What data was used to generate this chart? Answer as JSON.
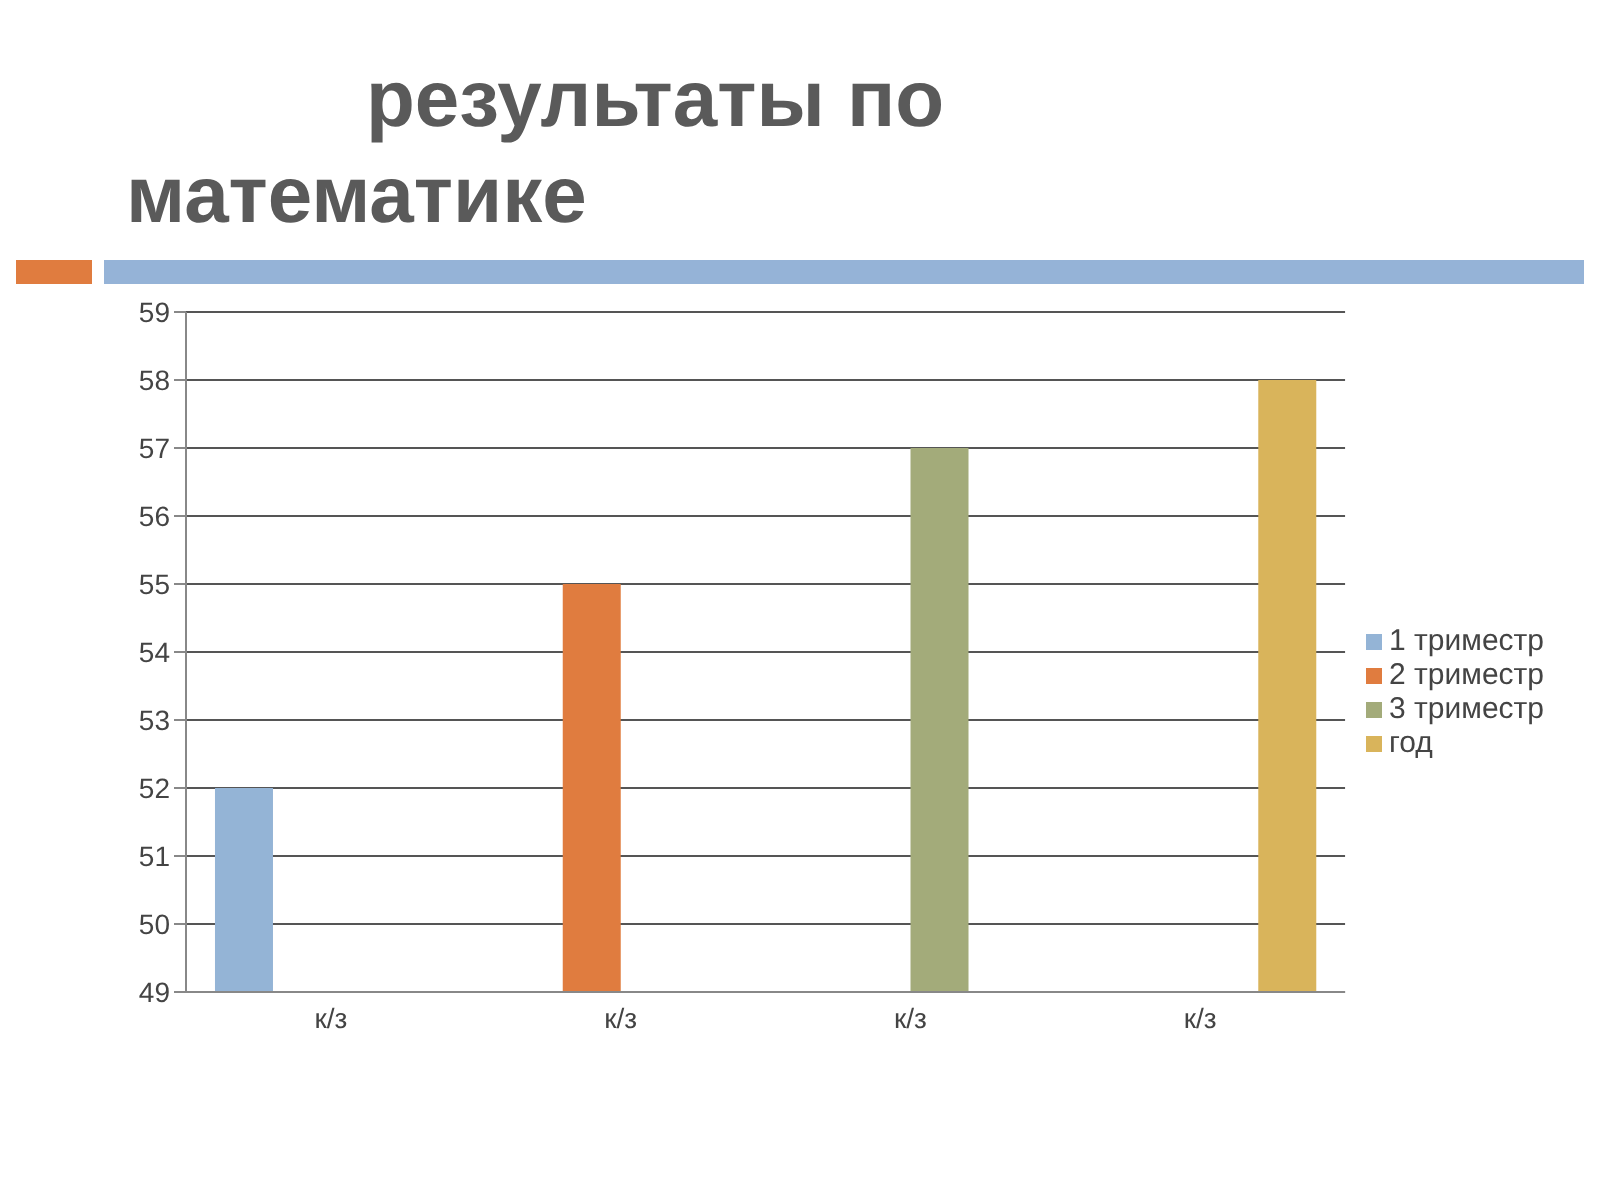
{
  "chart_data": {
    "type": "bar",
    "title": "результаты по математике",
    "categories": [
      "к/з",
      "к/з",
      "к/з",
      "к/з"
    ],
    "series": [
      {
        "name": "1 триместр",
        "color": "#94b4d6",
        "values": [
          52,
          null,
          null,
          null
        ]
      },
      {
        "name": "2 триместр",
        "color": "#e07c3f",
        "values": [
          null,
          55,
          null,
          null
        ]
      },
      {
        "name": "3 триместр",
        "color": "#a3ab7a",
        "values": [
          null,
          null,
          57,
          null
        ]
      },
      {
        "name": "год",
        "color": "#d9b45b",
        "values": [
          null,
          null,
          null,
          58
        ]
      }
    ],
    "ylim": [
      49,
      59
    ],
    "yticks": [
      49,
      50,
      51,
      52,
      53,
      54,
      55,
      56,
      57,
      58,
      59
    ],
    "grid": "y",
    "legend": "right"
  }
}
